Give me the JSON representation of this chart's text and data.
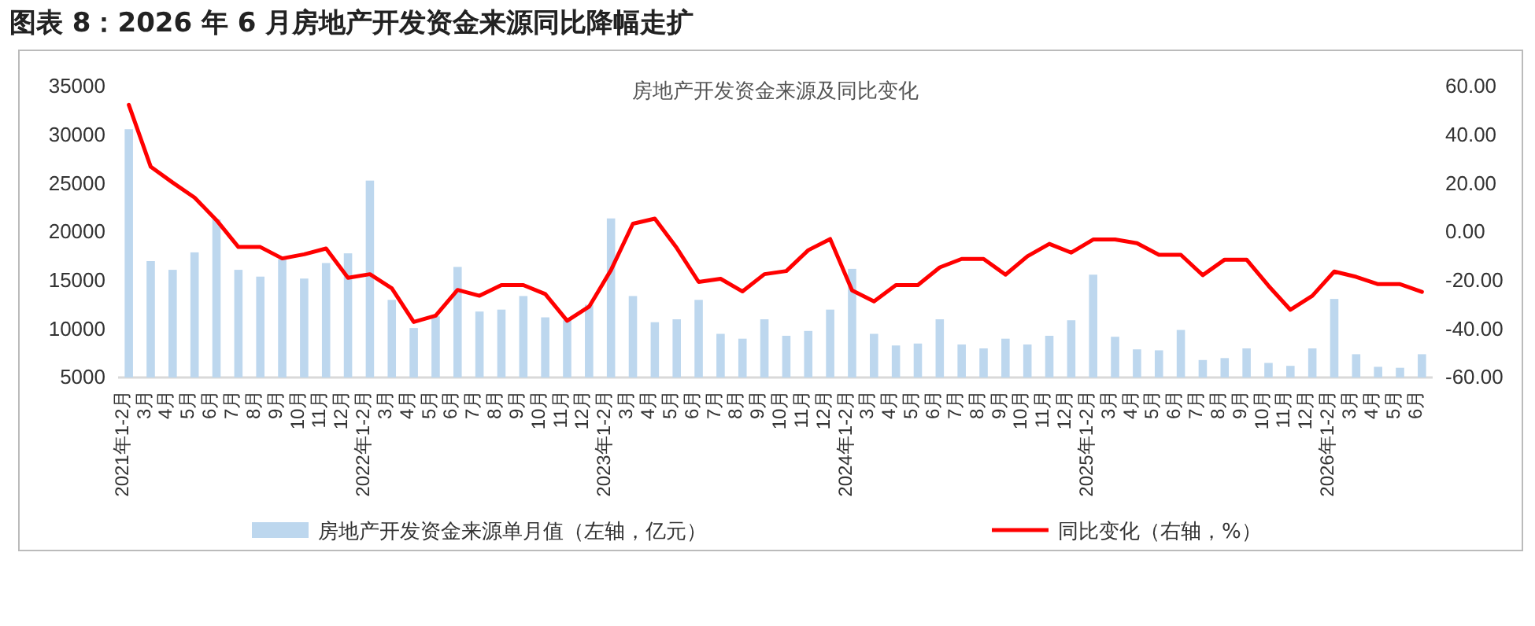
{
  "chart_data": {
    "type": "bar",
    "title": "图表 8：2026 年 6 月房地产开发资金来源同比降幅走扩",
    "subtitle": "房地产开发资金来源及同比变化",
    "categories": [
      "2021年1-2月",
      "3月",
      "4月",
      "5月",
      "6月",
      "7月",
      "8月",
      "9月",
      "10月",
      "11月",
      "12月",
      "2022年1-2月",
      "3月",
      "4月",
      "5月",
      "6月",
      "7月",
      "8月",
      "9月",
      "10月",
      "11月",
      "12月",
      "2023年1-2月",
      "3月",
      "4月",
      "5月",
      "6月",
      "7月",
      "8月",
      "9月",
      "10月",
      "11月",
      "12月",
      "2024年1-2月",
      "3月",
      "4月",
      "5月",
      "6月",
      "7月",
      "8月",
      "9月",
      "10月",
      "11月",
      "12月",
      "2025年1-2月",
      "3月",
      "4月",
      "5月",
      "6月",
      "7月",
      "8月",
      "9月",
      "10月",
      "11月",
      "12月",
      "2026年1-2月",
      "3月",
      "4月",
      "5月",
      "6月"
    ],
    "series": [
      {
        "name": "房地产开发资金来源单月值（左轴，亿元）",
        "color": "#bdd7ee",
        "values": [
          30600,
          17000,
          16100,
          17900,
          21300,
          16100,
          15400,
          17200,
          15200,
          16800,
          17800,
          25300,
          13000,
          10100,
          11300,
          16400,
          11800,
          12000,
          13400,
          11200,
          10900,
          12500,
          21400,
          13400,
          10700,
          11000,
          13000,
          9500,
          9000,
          11000,
          9300,
          9800,
          12000,
          16200,
          9500,
          8300,
          8500,
          11000,
          8400,
          8000,
          9000,
          8400,
          9300,
          10900,
          15600,
          9200,
          7900,
          7800,
          9900,
          6800,
          7000,
          8000,
          6500,
          6200,
          8000,
          13100,
          7400,
          6100,
          6000,
          7400
        ]
      },
      {
        "name": "同比变化（右轴，%）",
        "type": "line",
        "axis": "y2",
        "color": "#ff0000",
        "values": [
          52.4,
          26.9,
          20.4,
          14.2,
          4.9,
          -6.2,
          -6.2,
          -10.9,
          -9.2,
          -6.8,
          -18.9,
          -17.4,
          -23.2,
          -37.1,
          -34.5,
          -23.9,
          -26.3,
          -21.9,
          -21.9,
          -25.6,
          -36.6,
          -30.8,
          -15.7,
          3.4,
          5.5,
          -6.6,
          -20.6,
          -19.3,
          -24.5,
          -17.4,
          -16.1,
          -7.5,
          -2.9,
          -24.1,
          -28.6,
          -21.9,
          -21.9,
          -14.6,
          -11.1,
          -11.1,
          -17.6,
          -10.0,
          -4.9,
          -8.5,
          -3.1,
          -3.1,
          -4.6,
          -9.4,
          -9.4,
          -17.8,
          -11.4,
          -11.4,
          -22.2,
          -32.1,
          -26.3,
          -16.3,
          -18.5,
          -21.5,
          -21.5,
          -24.7
        ]
      }
    ],
    "ylim": [
      5000,
      35000
    ],
    "yticks": [
      5000,
      10000,
      15000,
      20000,
      25000,
      30000,
      35000
    ],
    "y2lim": [
      -60,
      60
    ],
    "y2ticks": [
      {
        "value": -60,
        "label": "-60.00"
      },
      {
        "value": -40,
        "label": "-40.00"
      },
      {
        "value": -20,
        "label": "-20.00"
      },
      {
        "value": 0,
        "label": "0.00"
      },
      {
        "value": 20,
        "label": "20.00"
      },
      {
        "value": 40,
        "label": "40.00"
      },
      {
        "value": 60,
        "label": "60.00"
      }
    ],
    "legend": "bottom",
    "marker": "none",
    "line_style": "solid"
  }
}
